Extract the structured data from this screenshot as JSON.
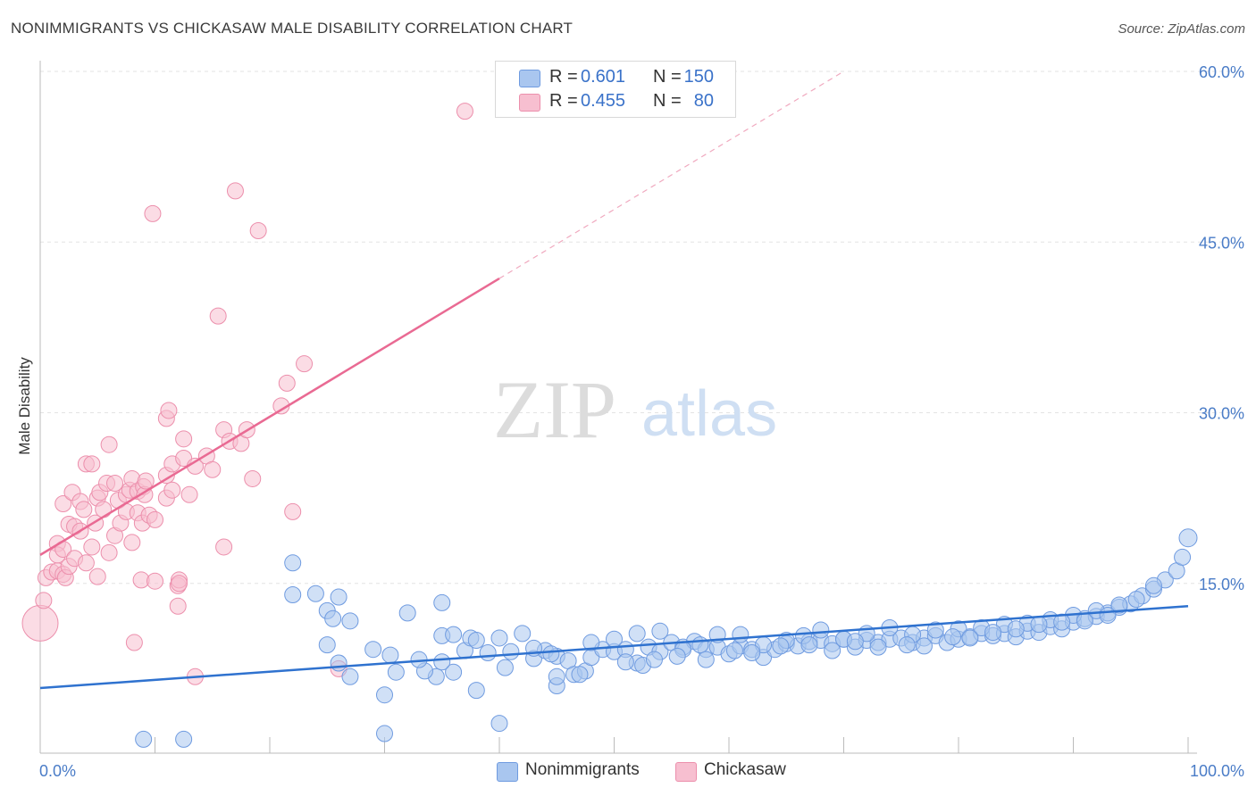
{
  "header": {
    "title": "NONIMMIGRANTS VS CHICKASAW MALE DISABILITY CORRELATION CHART",
    "source": "Source: ZipAtlas.com"
  },
  "watermark": {
    "zip": "ZIP",
    "atlas": "atlas"
  },
  "legend": {
    "rows": [
      {
        "r_label": "R =",
        "r_value": "0.601",
        "n_label": "N =",
        "n_value": "150"
      },
      {
        "r_label": "R =",
        "r_value": "0.455",
        "n_label": "N =",
        "n_value": "80"
      }
    ]
  },
  "bottom_legend": {
    "series1": "Nonimmigrants",
    "series2": "Chickasaw"
  },
  "colors": {
    "blue_fill": "#a9c6ef",
    "blue_stroke": "#6f9be0",
    "blue_line": "#2f72cf",
    "pink_fill": "#f7bfd0",
    "pink_stroke": "#ec8fac",
    "pink_line": "#e96a93",
    "grid": "#e3e3e3",
    "tick_text": "#4a7cc7"
  },
  "chart_data": {
    "type": "scatter",
    "xlabel": "",
    "ylabel": "Male Disability",
    "xlim": [
      0,
      100
    ],
    "ylim": [
      0,
      60
    ],
    "x_tick_labels": [
      "0.0%",
      "100.0%"
    ],
    "y_ticks": [
      15,
      30,
      45,
      60
    ],
    "y_tick_labels": [
      "15.0%",
      "30.0%",
      "45.0%",
      "60.0%"
    ],
    "grid": "horizontal dashed",
    "legend_position": "top-center",
    "series": [
      {
        "name": "Nonimmigrants",
        "color": "#a9c6ef",
        "trend": {
          "x0": 0,
          "y0": 5.8,
          "x1": 100,
          "y1": 13.0
        },
        "points": [
          [
            9,
            1.3
          ],
          [
            12.5,
            1.3
          ],
          [
            30,
            1.8
          ],
          [
            40,
            2.7
          ],
          [
            30,
            5.2
          ],
          [
            38,
            5.6
          ],
          [
            45,
            6.0
          ],
          [
            27,
            6.8
          ],
          [
            34.5,
            6.8
          ],
          [
            26,
            8.0
          ],
          [
            31,
            7.2
          ],
          [
            33.5,
            7.3
          ],
          [
            36,
            7.2
          ],
          [
            35,
            8.1
          ],
          [
            40.5,
            7.6
          ],
          [
            37,
            9.1
          ],
          [
            41,
            9.0
          ],
          [
            43,
            8.4
          ],
          [
            44,
            9.1
          ],
          [
            45,
            8.6
          ],
          [
            46,
            8.2
          ],
          [
            46.5,
            7.0
          ],
          [
            47.5,
            7.3
          ],
          [
            48,
            8.5
          ],
          [
            49,
            9.2
          ],
          [
            50,
            9.0
          ],
          [
            51,
            9.2
          ],
          [
            52,
            8.0
          ],
          [
            52.5,
            7.8
          ],
          [
            53,
            9.4
          ],
          [
            54,
            9.0
          ],
          [
            55,
            9.8
          ],
          [
            56,
            9.4
          ],
          [
            57,
            9.9
          ],
          [
            58,
            9.2
          ],
          [
            59,
            9.4
          ],
          [
            60,
            8.8
          ],
          [
            61,
            9.5
          ],
          [
            62,
            9.2
          ],
          [
            63,
            8.5
          ],
          [
            64,
            9.2
          ],
          [
            65,
            9.7
          ],
          [
            66,
            9.5
          ],
          [
            67,
            9.9
          ],
          [
            68,
            10.0
          ],
          [
            69,
            9.7
          ],
          [
            70,
            10.1
          ],
          [
            71,
            9.4
          ],
          [
            72,
            10.0
          ],
          [
            73,
            9.8
          ],
          [
            74,
            10.1
          ],
          [
            75,
            10.2
          ],
          [
            76,
            9.8
          ],
          [
            77,
            10.2
          ],
          [
            78,
            10.4
          ],
          [
            79,
            9.8
          ],
          [
            80,
            10.1
          ],
          [
            81,
            10.3
          ],
          [
            82,
            10.6
          ],
          [
            83,
            10.4
          ],
          [
            84,
            10.6
          ],
          [
            85,
            10.3
          ],
          [
            86,
            10.8
          ],
          [
            87,
            10.7
          ],
          [
            88,
            11.2
          ],
          [
            89,
            11.0
          ],
          [
            90,
            11.6
          ],
          [
            91,
            11.9
          ],
          [
            92,
            12.1
          ],
          [
            93,
            12.4
          ],
          [
            94,
            12.9
          ],
          [
            95,
            13.2
          ],
          [
            96,
            13.9
          ],
          [
            97,
            14.5
          ],
          [
            98,
            15.3
          ],
          [
            99,
            16.1
          ],
          [
            99.5,
            17.3
          ],
          [
            100,
            19.0
          ],
          [
            25,
            12.6
          ],
          [
            25.5,
            11.9
          ],
          [
            27,
            11.7
          ],
          [
            25,
            9.6
          ],
          [
            29,
            9.2
          ],
          [
            32,
            12.4
          ],
          [
            35,
            10.4
          ],
          [
            36,
            10.5
          ],
          [
            37.5,
            10.2
          ],
          [
            38,
            10.0
          ],
          [
            40,
            10.2
          ],
          [
            42,
            10.6
          ],
          [
            43,
            9.3
          ],
          [
            44.5,
            8.8
          ],
          [
            48,
            9.8
          ],
          [
            50,
            10.1
          ],
          [
            52,
            10.6
          ],
          [
            54,
            10.8
          ],
          [
            56,
            9.2
          ],
          [
            57.5,
            9.6
          ],
          [
            59,
            10.5
          ],
          [
            61,
            10.5
          ],
          [
            63,
            9.6
          ],
          [
            65,
            10.0
          ],
          [
            66.5,
            10.4
          ],
          [
            68,
            10.9
          ],
          [
            70,
            10.1
          ],
          [
            72,
            10.6
          ],
          [
            74,
            11.1
          ],
          [
            76,
            10.5
          ],
          [
            78,
            10.9
          ],
          [
            80,
            11.0
          ],
          [
            82,
            11.1
          ],
          [
            84,
            11.4
          ],
          [
            86,
            11.5
          ],
          [
            88,
            11.8
          ],
          [
            90,
            12.2
          ],
          [
            92,
            12.6
          ],
          [
            94,
            13.1
          ],
          [
            95.5,
            13.6
          ],
          [
            97,
            14.8
          ],
          [
            22,
            16.8
          ],
          [
            22,
            14.0
          ],
          [
            24,
            14.1
          ],
          [
            26,
            13.8
          ],
          [
            35,
            13.3
          ],
          [
            30.5,
            8.7
          ],
          [
            33,
            8.3
          ],
          [
            39,
            8.9
          ],
          [
            45,
            6.8
          ],
          [
            47,
            7.0
          ],
          [
            51,
            8.1
          ],
          [
            53.5,
            8.3
          ],
          [
            55.5,
            8.6
          ],
          [
            58,
            8.3
          ],
          [
            60.5,
            9.1
          ],
          [
            62,
            8.9
          ],
          [
            64.5,
            9.5
          ],
          [
            67,
            9.6
          ],
          [
            69,
            9.1
          ],
          [
            71,
            9.9
          ],
          [
            73,
            9.4
          ],
          [
            75.5,
            9.6
          ],
          [
            77,
            9.5
          ],
          [
            79.5,
            10.3
          ],
          [
            81,
            10.2
          ],
          [
            83,
            10.7
          ],
          [
            85,
            11.0
          ],
          [
            87,
            11.4
          ],
          [
            89,
            11.6
          ],
          [
            91,
            11.7
          ],
          [
            93,
            12.2
          ]
        ]
      },
      {
        "name": "Chickasaw",
        "color": "#f7bfd0",
        "trend": {
          "x0": 0,
          "y0": 17.5,
          "x1": 40,
          "y1": 41.8
        },
        "trend_dashed": {
          "x0": 40,
          "y0": 41.8,
          "x1": 70,
          "y1": 60
        },
        "points": [
          [
            0,
            11.5
          ],
          [
            0.3,
            13.5
          ],
          [
            0.5,
            15.5
          ],
          [
            1,
            16
          ],
          [
            1.5,
            16.1
          ],
          [
            1.5,
            18.5
          ],
          [
            1.5,
            17.5
          ],
          [
            2,
            15.8
          ],
          [
            2,
            18
          ],
          [
            2.2,
            15.5
          ],
          [
            2,
            22
          ],
          [
            2.5,
            20.2
          ],
          [
            2.5,
            16.5
          ],
          [
            2.8,
            23
          ],
          [
            3,
            20
          ],
          [
            3,
            17.2
          ],
          [
            3.5,
            19.6
          ],
          [
            3.5,
            22.2
          ],
          [
            3.8,
            21.5
          ],
          [
            4,
            16.8
          ],
          [
            4,
            25.5
          ],
          [
            4.5,
            18.2
          ],
          [
            4.5,
            25.5
          ],
          [
            4.8,
            20.3
          ],
          [
            5,
            15.6
          ],
          [
            5,
            22.5
          ],
          [
            5.2,
            23
          ],
          [
            5.5,
            21.5
          ],
          [
            5.8,
            23.8
          ],
          [
            6,
            17.7
          ],
          [
            6,
            27.2
          ],
          [
            6.5,
            23.8
          ],
          [
            6.5,
            19.2
          ],
          [
            6.8,
            22.3
          ],
          [
            7,
            20.3
          ],
          [
            7.5,
            22.8
          ],
          [
            7.5,
            21.3
          ],
          [
            7.8,
            23.2
          ],
          [
            8,
            18.6
          ],
          [
            8,
            24.2
          ],
          [
            8.2,
            9.8
          ],
          [
            8.5,
            23.1
          ],
          [
            8.5,
            21.2
          ],
          [
            8.8,
            15.3
          ],
          [
            8.9,
            20.3
          ],
          [
            9,
            23.5
          ],
          [
            9.1,
            22.8
          ],
          [
            9.2,
            24
          ],
          [
            9.5,
            21
          ],
          [
            9.8,
            47.5
          ],
          [
            10,
            20.6
          ],
          [
            10,
            15.2
          ],
          [
            11,
            22.5
          ],
          [
            11,
            24.5
          ],
          [
            11,
            29.5
          ],
          [
            11.2,
            30.2
          ],
          [
            11.5,
            23.2
          ],
          [
            11.5,
            25.5
          ],
          [
            12,
            14.8
          ],
          [
            12,
            13
          ],
          [
            12.1,
            15.3
          ],
          [
            12.1,
            15
          ],
          [
            12.5,
            27.7
          ],
          [
            12.5,
            26
          ],
          [
            13,
            22.8
          ],
          [
            13.5,
            25.3
          ],
          [
            13.5,
            6.8
          ],
          [
            14.5,
            26.2
          ],
          [
            15,
            25
          ],
          [
            15.5,
            38.5
          ],
          [
            16,
            28.5
          ],
          [
            16,
            18.2
          ],
          [
            16.5,
            27.5
          ],
          [
            17,
            49.5
          ],
          [
            17.5,
            27.3
          ],
          [
            18,
            28.5
          ],
          [
            18.5,
            24.2
          ],
          [
            19,
            46
          ],
          [
            21,
            30.6
          ],
          [
            21.5,
            32.6
          ],
          [
            22,
            21.3
          ],
          [
            23,
            34.3
          ],
          [
            26,
            7.5
          ],
          [
            37,
            56.5
          ]
        ]
      }
    ]
  }
}
